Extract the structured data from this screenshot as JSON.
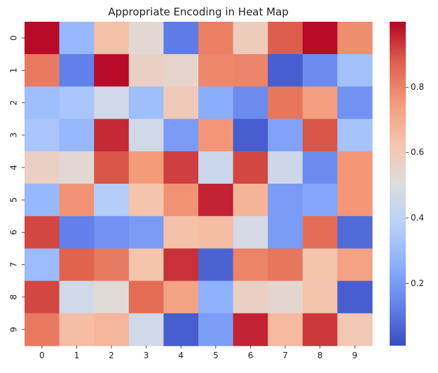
{
  "chart_data": {
    "type": "heatmap",
    "title": "Appropriate Encoding in Heat Map",
    "xlabel": "",
    "ylabel": "",
    "x_categories": [
      "0",
      "1",
      "2",
      "3",
      "4",
      "5",
      "6",
      "7",
      "8",
      "9"
    ],
    "y_categories": [
      "0",
      "1",
      "2",
      "3",
      "4",
      "5",
      "6",
      "7",
      "8",
      "9"
    ],
    "colormap": "coolwarm",
    "vmin": 0.01,
    "vmax": 1.0,
    "colorbar_ticks": [
      {
        "value": 0.2,
        "label": "0.2"
      },
      {
        "value": 0.4,
        "label": "0.4"
      },
      {
        "value": 0.6,
        "label": "0.6"
      },
      {
        "value": 0.8,
        "label": "0.8"
      }
    ],
    "values": [
      [
        0.99,
        0.29,
        0.64,
        0.53,
        0.12,
        0.81,
        0.59,
        0.88,
        0.99,
        0.78
      ],
      [
        0.82,
        0.13,
        0.99,
        0.57,
        0.55,
        0.79,
        0.8,
        0.05,
        0.16,
        0.32
      ],
      [
        0.31,
        0.34,
        0.46,
        0.31,
        0.6,
        0.25,
        0.16,
        0.83,
        0.74,
        0.18
      ],
      [
        0.34,
        0.29,
        0.95,
        0.46,
        0.2,
        0.76,
        0.05,
        0.22,
        0.89,
        0.33
      ],
      [
        0.57,
        0.53,
        0.89,
        0.75,
        0.92,
        0.44,
        0.91,
        0.45,
        0.16,
        0.76
      ],
      [
        0.29,
        0.77,
        0.37,
        0.63,
        0.77,
        0.96,
        0.68,
        0.2,
        0.23,
        0.76
      ],
      [
        0.91,
        0.13,
        0.18,
        0.2,
        0.64,
        0.65,
        0.48,
        0.2,
        0.85,
        0.08
      ],
      [
        0.3,
        0.87,
        0.82,
        0.63,
        0.94,
        0.06,
        0.8,
        0.83,
        0.63,
        0.73
      ],
      [
        0.91,
        0.46,
        0.52,
        0.85,
        0.73,
        0.26,
        0.57,
        0.54,
        0.63,
        0.05
      ],
      [
        0.82,
        0.65,
        0.67,
        0.46,
        0.05,
        0.21,
        0.96,
        0.66,
        0.93,
        0.61
      ]
    ]
  }
}
